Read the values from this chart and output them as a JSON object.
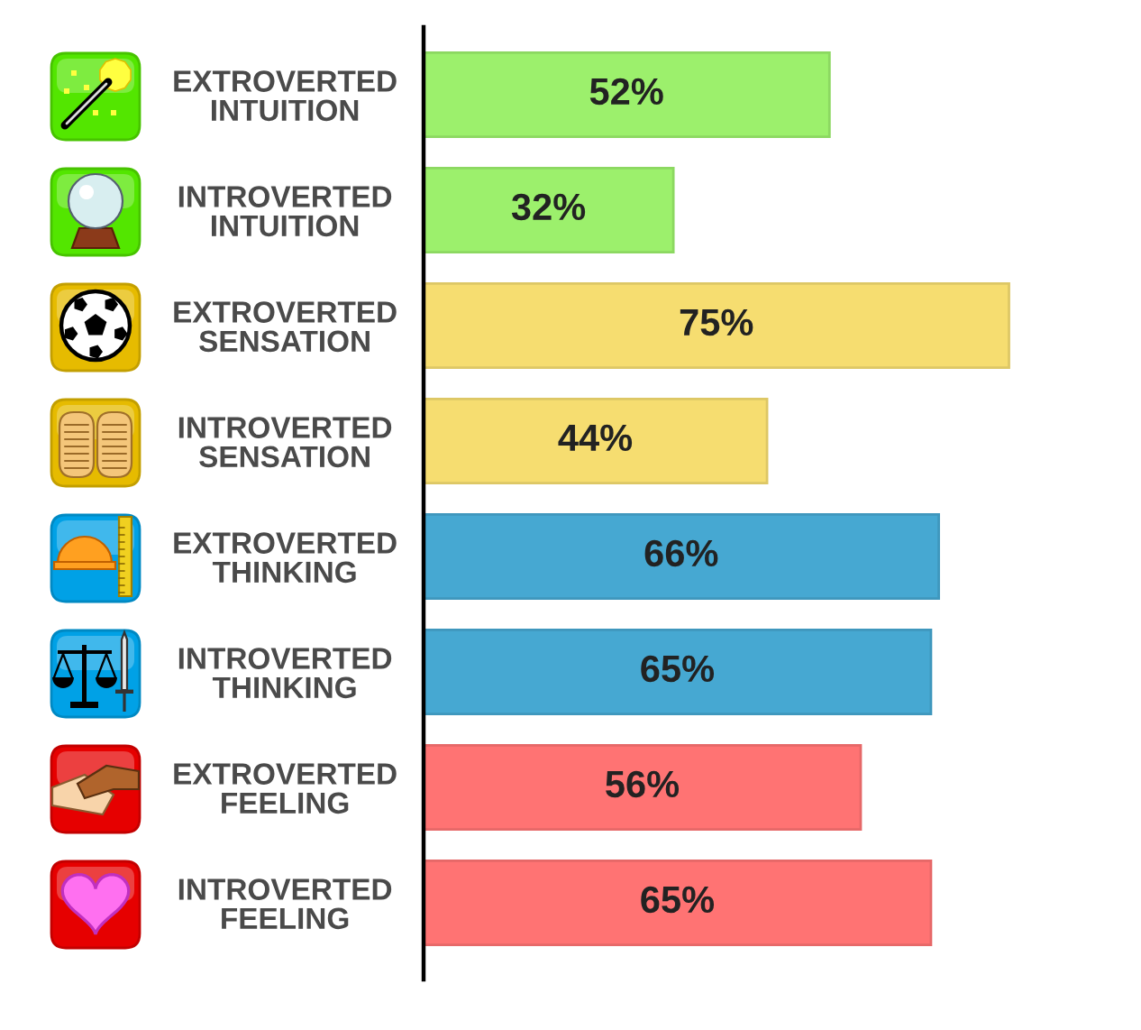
{
  "chart_data": {
    "type": "bar",
    "orientation": "horizontal",
    "categories": [
      "EXTROVERTED\nINTUITION",
      "INTROVERTED\nINTUITION",
      "EXTROVERTED\nSENSATION",
      "INTROVERTED\nSENSATION",
      "EXTROVERTED\nTHINKING",
      "INTROVERTED\nTHINKING",
      "EXTROVERTED\nFEELING",
      "INTROVERTED\nFEELING"
    ],
    "values": [
      52,
      32,
      75,
      44,
      66,
      65,
      56,
      65
    ],
    "colors": [
      "#9cf06c",
      "#9cf06c",
      "#f6dd70",
      "#f6dd70",
      "#46a8d2",
      "#46a8d2",
      "#ff7373",
      "#ff7373"
    ],
    "value_labels": [
      "52%",
      "32%",
      "75%",
      "44%",
      "66%",
      "65%",
      "56%",
      "65%"
    ],
    "tick_labels": "y"
  }
}
